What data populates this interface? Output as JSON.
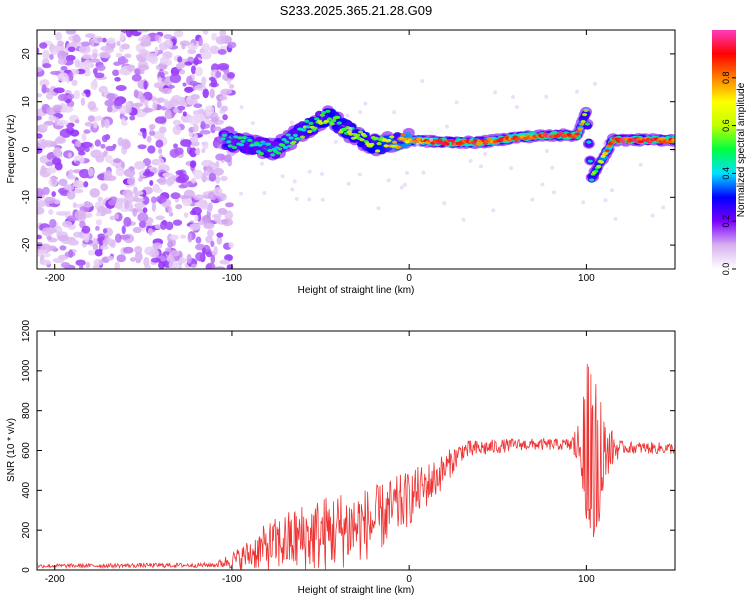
{
  "title": "S233.2025.365.21.28.G09",
  "chart_data": [
    {
      "type": "heatmap",
      "xlabel": "Height of straight line (km)",
      "ylabel": "Frequency (Hz)",
      "xlim": [
        -210,
        150
      ],
      "ylim": [
        -25,
        25
      ],
      "x_ticks": [
        -200,
        -100,
        0,
        100
      ],
      "y_ticks": [
        -20,
        -10,
        0,
        10,
        20
      ],
      "colorbar": {
        "label": "Normalized spectral amplitude",
        "range": [
          0,
          1
        ],
        "ticks": [
          "0.0",
          "0.2",
          "0.4",
          "0.6",
          "0.8"
        ],
        "tick_values": [
          0.0,
          0.2,
          0.4,
          0.6,
          0.8
        ],
        "colormap": [
          "#ffffff",
          "#d8b0f0",
          "#7a00ff",
          "#0000ff",
          "#00e0ff",
          "#00ff40",
          "#c0ff00",
          "#ffff00",
          "#ff8000",
          "#ff0000",
          "#ff3cc0"
        ]
      },
      "ridge_profile": [
        {
          "x": -105,
          "f": 2,
          "amp": 0.35
        },
        {
          "x": -90,
          "f": 1,
          "amp": 0.45
        },
        {
          "x": -75,
          "f": 0,
          "amp": 0.4
        },
        {
          "x": -60,
          "f": 4,
          "amp": 0.5
        },
        {
          "x": -45,
          "f": 7,
          "amp": 0.6
        },
        {
          "x": -35,
          "f": 4,
          "amp": 0.55
        },
        {
          "x": -20,
          "f": 1,
          "amp": 0.6
        },
        {
          "x": 0,
          "f": 2,
          "amp": 0.75
        },
        {
          "x": 20,
          "f": 1.5,
          "amp": 0.9
        },
        {
          "x": 40,
          "f": 1.5,
          "amp": 0.85
        },
        {
          "x": 60,
          "f": 2.5,
          "amp": 0.85
        },
        {
          "x": 80,
          "f": 3,
          "amp": 0.9
        },
        {
          "x": 95,
          "f": 3,
          "amp": 0.9
        },
        {
          "x": 100,
          "f": 8,
          "amp": 0.5
        },
        {
          "x": 103,
          "f": -6,
          "amp": 0.5
        },
        {
          "x": 115,
          "f": 2,
          "amp": 0.9
        },
        {
          "x": 150,
          "f": 2,
          "amp": 0.85
        }
      ],
      "noise_region_x": [
        -210,
        -100
      ]
    },
    {
      "type": "line",
      "xlabel": "Height of straight line (km)",
      "ylabel": "SNR (10 * v/v)",
      "xlim": [
        -210,
        150
      ],
      "ylim": [
        0,
        1200
      ],
      "x_ticks": [
        -200,
        -100,
        0,
        100
      ],
      "y_ticks": [
        0,
        200,
        400,
        600,
        800,
        1000,
        1200
      ],
      "color": "#ee3333",
      "envelope": [
        {
          "x": -210,
          "mean": 20,
          "spread": 10
        },
        {
          "x": -110,
          "mean": 25,
          "spread": 12
        },
        {
          "x": -95,
          "mean": 60,
          "spread": 60
        },
        {
          "x": -80,
          "mean": 120,
          "spread": 120
        },
        {
          "x": -60,
          "mean": 160,
          "spread": 180
        },
        {
          "x": -40,
          "mean": 200,
          "spread": 200
        },
        {
          "x": -20,
          "mean": 240,
          "spread": 180
        },
        {
          "x": 0,
          "mean": 360,
          "spread": 140
        },
        {
          "x": 15,
          "mean": 460,
          "spread": 100
        },
        {
          "x": 30,
          "mean": 600,
          "spread": 50
        },
        {
          "x": 60,
          "mean": 630,
          "spread": 30
        },
        {
          "x": 90,
          "mean": 630,
          "spread": 30
        },
        {
          "x": 97,
          "mean": 620,
          "spread": 150
        },
        {
          "x": 100,
          "mean": 600,
          "spread": 450
        },
        {
          "x": 105,
          "mean": 520,
          "spread": 500
        },
        {
          "x": 110,
          "mean": 600,
          "spread": 150
        },
        {
          "x": 120,
          "mean": 615,
          "spread": 30
        },
        {
          "x": 150,
          "mean": 610,
          "spread": 30
        }
      ]
    }
  ]
}
